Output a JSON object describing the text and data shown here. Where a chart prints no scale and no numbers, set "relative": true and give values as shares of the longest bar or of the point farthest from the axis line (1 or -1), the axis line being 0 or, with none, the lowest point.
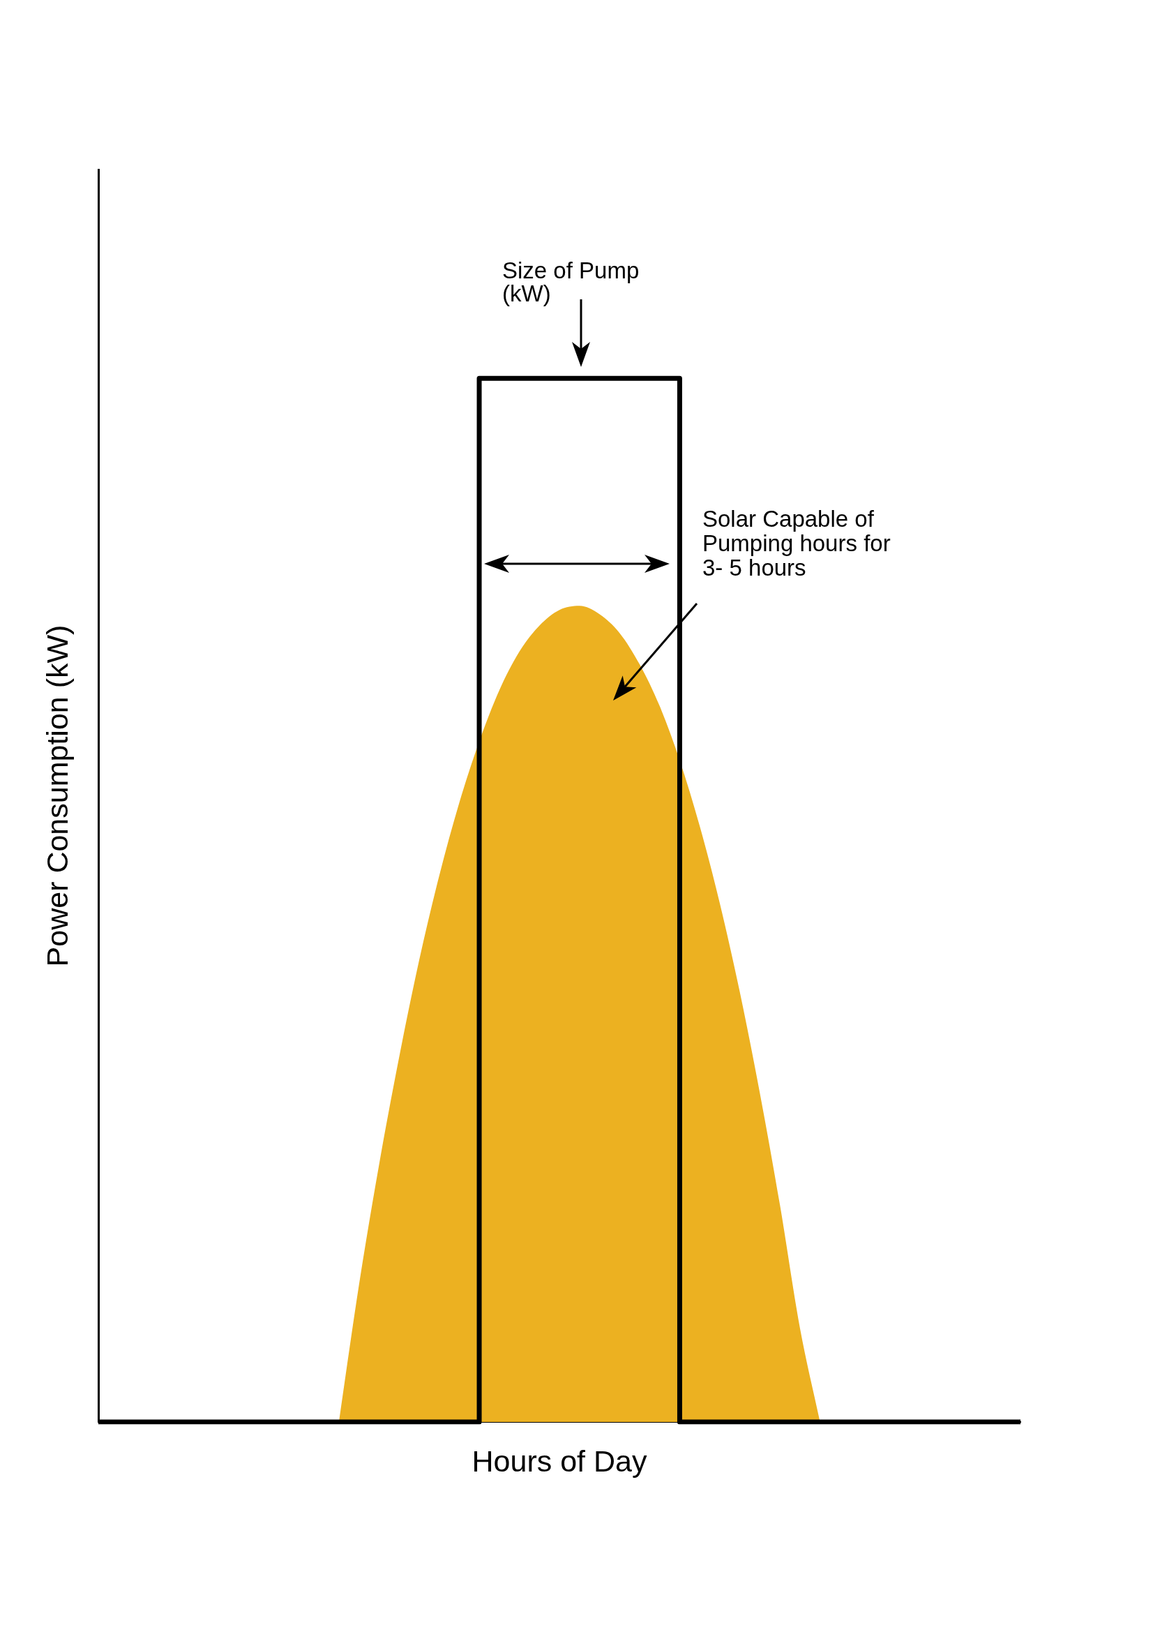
{
  "chart_data": {
    "type": "area",
    "relative": true,
    "xlabel": "Hours of Day",
    "ylabel": "Power Consumption (kW)",
    "tick_labels": false,
    "categories": [
      null,
      null,
      null,
      null,
      null,
      null,
      null,
      null,
      null,
      null,
      null,
      null,
      null,
      null,
      null,
      null,
      null,
      null,
      null,
      null,
      null,
      null,
      null,
      null,
      null,
      null,
      null,
      null,
      null,
      null,
      null,
      null,
      null,
      null,
      null,
      null,
      null,
      null,
      null,
      null,
      null,
      null,
      null,
      null,
      null,
      null,
      null
    ],
    "series": [
      {
        "color": "#ecb121",
        "values": [
          null,
          null,
          null,
          null,
          null,
          null,
          null,
          null,
          null,
          null,
          null,
          null,
          0,
          0.131,
          0.246,
          0.349,
          0.442,
          0.523,
          0.593,
          0.652,
          0.701,
          0.738,
          0.763,
          0.778,
          0.782,
          0.774,
          0.756,
          0.726,
          0.686,
          0.634,
          0.571,
          0.497,
          0.412,
          0.315,
          0.208,
          0.09,
          0,
          null,
          null,
          null,
          null,
          null,
          null,
          null,
          null,
          null,
          null
        ]
      },
      {
        "type": "step",
        "color": "#000000",
        "values": [
          0,
          0,
          0,
          0,
          0,
          0,
          0,
          0,
          0,
          0,
          0,
          0,
          0,
          0,
          0,
          0,
          0,
          0,
          0,
          1,
          1,
          1,
          1,
          1,
          1,
          1,
          1,
          1,
          1,
          0,
          0,
          0,
          0,
          0,
          0,
          0,
          0,
          0,
          0,
          0,
          0,
          0,
          0,
          0,
          0,
          0,
          0
        ]
      }
    ],
    "annotations": [
      "Size of Pump (kW)",
      "Solar Capable of Pumping hours for 3- 5 hours"
    ]
  }
}
